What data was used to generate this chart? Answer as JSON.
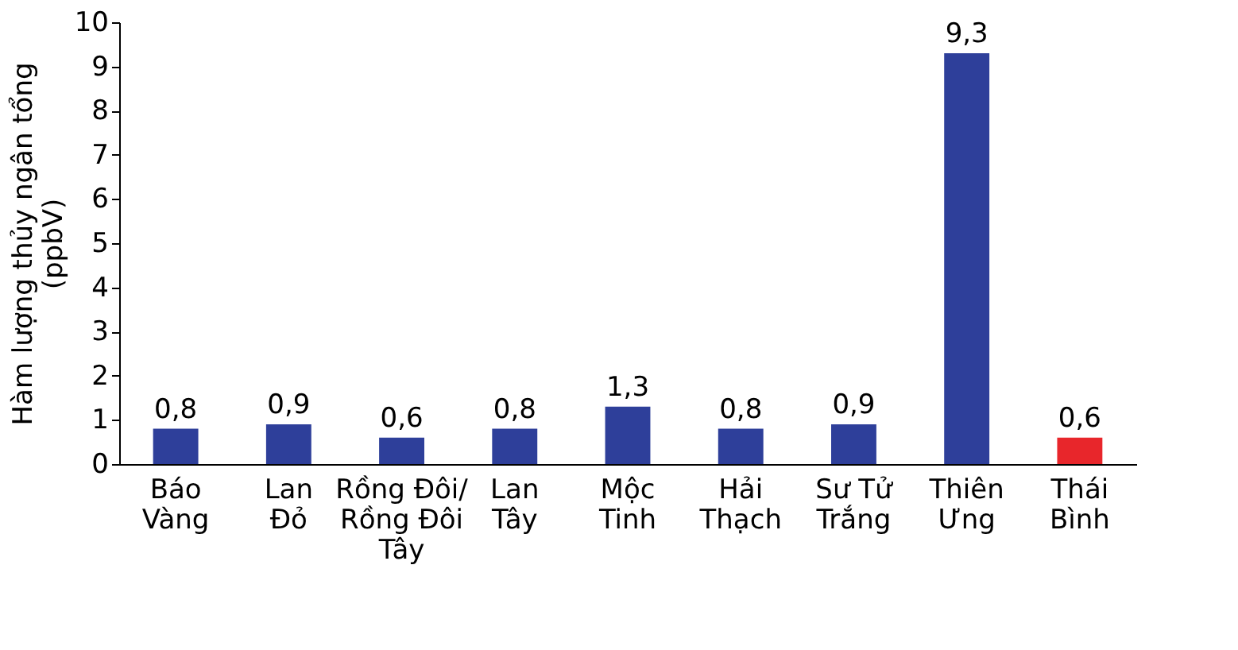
{
  "chart_data": {
    "type": "bar",
    "ylabel": "Hàm lượng thủy ngân tổng\n(ppbV)",
    "categories": [
      "Báo\nVàng",
      "Lan\nĐỏ",
      "Rồng Đôi/\nRồng Đôi\nTây",
      "Lan\nTây",
      "Mộc\nTinh",
      "Hải\nThạch",
      "Sư Tử\nTrắng",
      "Thiên\nƯng",
      "Thái\nBình"
    ],
    "values": [
      0.8,
      0.9,
      0.6,
      0.8,
      1.3,
      0.8,
      0.9,
      9.3,
      0.6
    ],
    "colors": [
      "#2e3f9a",
      "#2e3f9a",
      "#2e3f9a",
      "#2e3f9a",
      "#2e3f9a",
      "#2e3f9a",
      "#2e3f9a",
      "#2e3f9a",
      "#e8262b"
    ],
    "value_labels": [
      "0,8",
      "0,9",
      "0,6",
      "0,8",
      "1,3",
      "0,8",
      "0,9",
      "9,3",
      "0,6"
    ],
    "ylim": [
      0,
      10
    ],
    "yticks": [
      0,
      1,
      2,
      3,
      4,
      5,
      6,
      7,
      8,
      9,
      10
    ],
    "grid": false
  }
}
